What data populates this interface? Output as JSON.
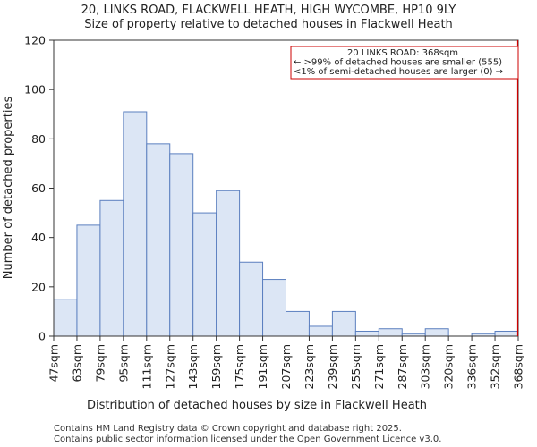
{
  "titles": {
    "line1": "20, LINKS ROAD, FLACKWELL HEATH, HIGH WYCOMBE, HP10 9LY",
    "line2": "Size of property relative to detached houses in Flackwell Heath"
  },
  "annotation": {
    "line1": "20 LINKS ROAD: 368sqm",
    "line2": "← >99% of detached houses are smaller (555)",
    "line3": "<1% of semi-detached houses are larger (0) →"
  },
  "footer": {
    "line1": "Contains HM Land Registry data © Crown copyright and database right 2025.",
    "line2": "Contains public sector information licensed under the Open Government Licence v3.0."
  },
  "chart_data": {
    "type": "bar",
    "title": "20, LINKS ROAD, FLACKWELL HEATH, HIGH WYCOMBE, HP10 9LY",
    "subtitle": "Size of property relative to detached houses in Flackwell Heath",
    "xlabel": "Distribution of detached houses by size in Flackwell Heath",
    "ylabel": "Number of detached properties",
    "ylim": [
      0,
      120
    ],
    "yticks": [
      0,
      20,
      40,
      60,
      80,
      100,
      120
    ],
    "bin_edges": [
      "47sqm",
      "63sqm",
      "79sqm",
      "95sqm",
      "111sqm",
      "127sqm",
      "143sqm",
      "159sqm",
      "175sqm",
      "191sqm",
      "207sqm",
      "223sqm",
      "239sqm",
      "255sqm",
      "271sqm",
      "287sqm",
      "303sqm",
      "320sqm",
      "336sqm",
      "352sqm",
      "368sqm"
    ],
    "values": [
      15,
      45,
      55,
      91,
      78,
      74,
      50,
      59,
      30,
      23,
      10,
      4,
      10,
      2,
      3,
      1,
      3,
      0,
      1,
      2
    ],
    "marker": {
      "value": "368sqm",
      "bin_index": 20,
      "color": "#cc0000"
    },
    "bar_fill": "#dce6f5",
    "bar_stroke": "#5b7fbf",
    "grid": false,
    "legend": "none"
  }
}
